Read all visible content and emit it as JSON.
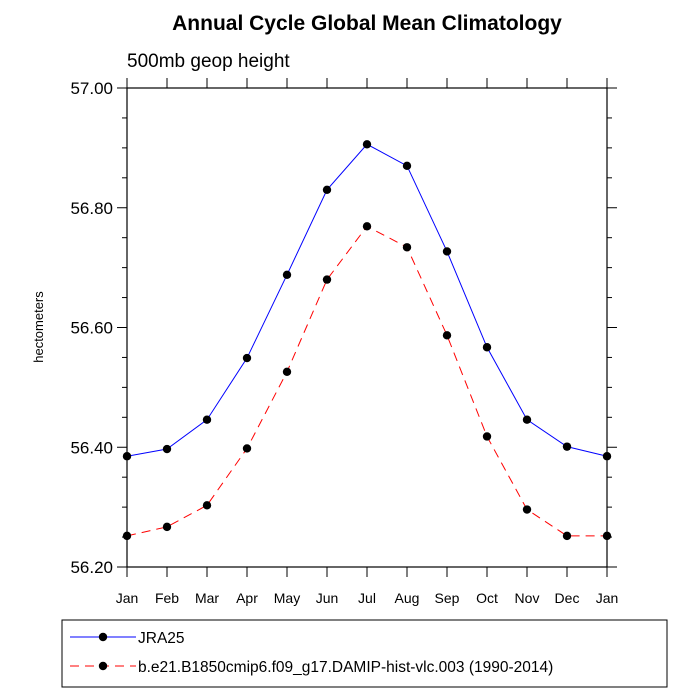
{
  "chart_data": {
    "type": "line",
    "title": "Annual Cycle Global Mean Climatology",
    "subtitle": "500mb geop height",
    "ylabel": "hectometers",
    "xlabel": "",
    "ylim": [
      56.2,
      57.0
    ],
    "yticks": [
      "56.20",
      "56.40",
      "56.60",
      "56.80",
      "57.00"
    ],
    "ytick_values": [
      56.2,
      56.4,
      56.6,
      56.8,
      57.0
    ],
    "categories": [
      "Jan",
      "Feb",
      "Mar",
      "Apr",
      "May",
      "Jun",
      "Jul",
      "Aug",
      "Sep",
      "Oct",
      "Nov",
      "Dec",
      "Jan"
    ],
    "grid": false,
    "legend_position": "bottom",
    "series": [
      {
        "name": "JRA25",
        "color": "#0000ff",
        "style": "solid",
        "values": [
          56.385,
          56.397,
          56.446,
          56.549,
          56.688,
          56.83,
          56.906,
          56.87,
          56.727,
          56.567,
          56.446,
          56.401,
          56.385
        ]
      },
      {
        "name": "b.e21.B1850cmip6.f09_g17.DAMIP-hist-vlc.003 (1990-2014)",
        "color": "#ff0000",
        "style": "dashed",
        "values": [
          56.252,
          56.267,
          56.303,
          56.398,
          56.526,
          56.68,
          56.769,
          56.734,
          56.587,
          56.418,
          56.296,
          56.252,
          56.252
        ]
      }
    ]
  }
}
